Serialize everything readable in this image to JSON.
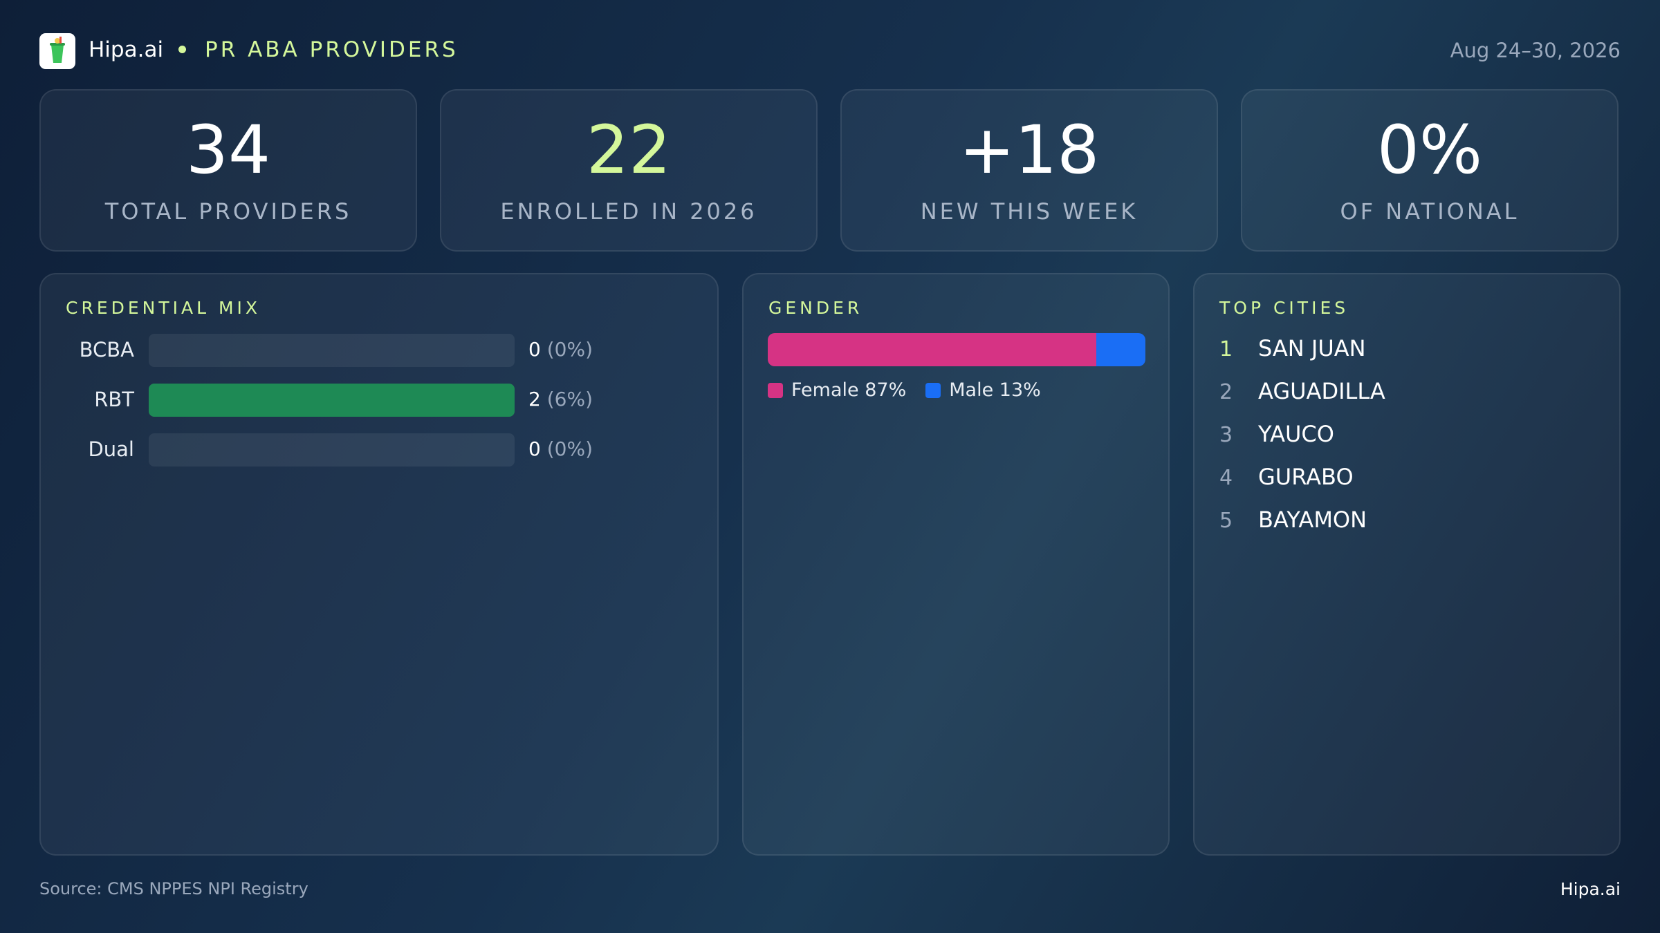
{
  "header": {
    "brand": "Hipa.ai",
    "title": "PR ABA PROVIDERS",
    "date": "Aug 24–30, 2026"
  },
  "kpis": [
    {
      "value": "34",
      "label": "TOTAL PROVIDERS",
      "color": "#ffffff"
    },
    {
      "value": "22",
      "label": "ENROLLED IN 2026",
      "color": "#d4f79b"
    },
    {
      "value": "+18",
      "label": "NEW THIS WEEK",
      "color": "#ffffff"
    },
    {
      "value": "0%",
      "label": "OF NATIONAL",
      "color": "#ffffff"
    }
  ],
  "credential_mix": {
    "title": "CREDENTIAL MIX",
    "rows": [
      {
        "label": "BCBA",
        "count": 0,
        "share": "(0%)"
      },
      {
        "label": "RBT",
        "count": 2,
        "share": "(6%)"
      },
      {
        "label": "Dual",
        "count": 0,
        "share": "(0%)"
      }
    ]
  },
  "gender": {
    "title": "GENDER",
    "segments": [
      {
        "name": "Female",
        "value": 87,
        "value_label": "87%",
        "color": "#d63384"
      },
      {
        "name": "Male",
        "value": 13,
        "value_label": "13%",
        "color": "#1a6ef5"
      }
    ]
  },
  "top_cities": {
    "title": "TOP CITIES",
    "cities": [
      {
        "rank": 1,
        "name": "SAN JUAN"
      },
      {
        "rank": 2,
        "name": "AGUADILLA"
      },
      {
        "rank": 3,
        "name": "YAUCO"
      },
      {
        "rank": 4,
        "name": "GURABO"
      },
      {
        "rank": 5,
        "name": "BAYAMON"
      }
    ]
  },
  "footer": {
    "source": "Source: CMS NPPES NPI Registry",
    "brand": "Hipa.ai"
  }
}
